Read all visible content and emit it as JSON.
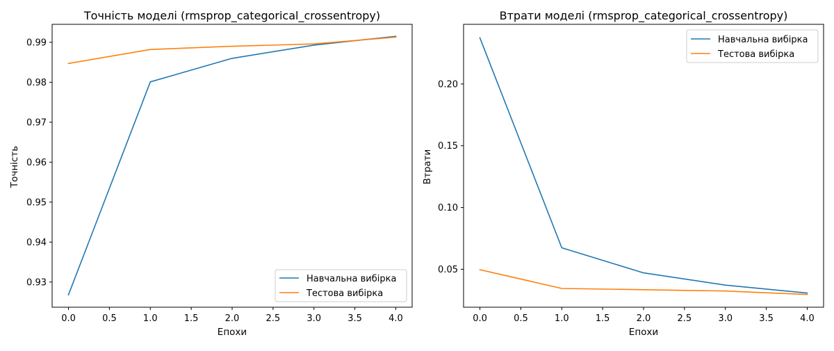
{
  "colors": {
    "train": "#1f77b4",
    "test": "#ff7f0e"
  },
  "chart_data": [
    {
      "type": "line",
      "title": "Точність моделі (rmsprop_categorical_crossentropy)",
      "xlabel": "Епохи",
      "ylabel": "Точність",
      "x": [
        0,
        1,
        2,
        3,
        4
      ],
      "xlim": [
        -0.2,
        4.2
      ],
      "ylim": [
        0.9237,
        0.9945
      ],
      "xticks": [
        0.0,
        0.5,
        1.0,
        1.5,
        2.0,
        2.5,
        3.0,
        3.5,
        4.0
      ],
      "xtick_labels": [
        "0.0",
        "0.5",
        "1.0",
        "1.5",
        "2.0",
        "2.5",
        "3.0",
        "3.5",
        "4.0"
      ],
      "yticks": [
        0.93,
        0.94,
        0.95,
        0.96,
        0.97,
        0.98,
        0.99
      ],
      "ytick_labels": [
        "0.93",
        "0.94",
        "0.95",
        "0.96",
        "0.97",
        "0.98",
        "0.99"
      ],
      "legend_position": "lower-right",
      "series": [
        {
          "name": "Навчальна вибірка",
          "color_key": "train",
          "values": [
            0.9268,
            0.9801,
            0.986,
            0.9893,
            0.9915
          ]
        },
        {
          "name": "Тестова вибірка",
          "color_key": "test",
          "values": [
            0.9847,
            0.9882,
            0.989,
            0.9896,
            0.9913
          ]
        }
      ]
    },
    {
      "type": "line",
      "title": "Втрати моделі (rmsprop_categorical_crossentropy)",
      "xlabel": "Епохи",
      "ylabel": "Втрати",
      "x": [
        0,
        1,
        2,
        3,
        4
      ],
      "xlim": [
        -0.2,
        4.2
      ],
      "ylim": [
        0.0193,
        0.2483
      ],
      "xticks": [
        0.0,
        0.5,
        1.0,
        1.5,
        2.0,
        2.5,
        3.0,
        3.5,
        4.0
      ],
      "xtick_labels": [
        "0.0",
        "0.5",
        "1.0",
        "1.5",
        "2.0",
        "2.5",
        "3.0",
        "3.5",
        "4.0"
      ],
      "yticks": [
        0.05,
        0.1,
        0.15,
        0.2
      ],
      "ytick_labels": [
        "0.05",
        "0.10",
        "0.15",
        "0.20"
      ],
      "legend_position": "upper-right",
      "series": [
        {
          "name": "Навчальна вибірка",
          "color_key": "train",
          "values": [
            0.2374,
            0.0674,
            0.0471,
            0.0372,
            0.0308
          ]
        },
        {
          "name": "Тестова вибірка",
          "color_key": "test",
          "values": [
            0.0497,
            0.0345,
            0.0335,
            0.0324,
            0.0296
          ]
        }
      ]
    }
  ]
}
